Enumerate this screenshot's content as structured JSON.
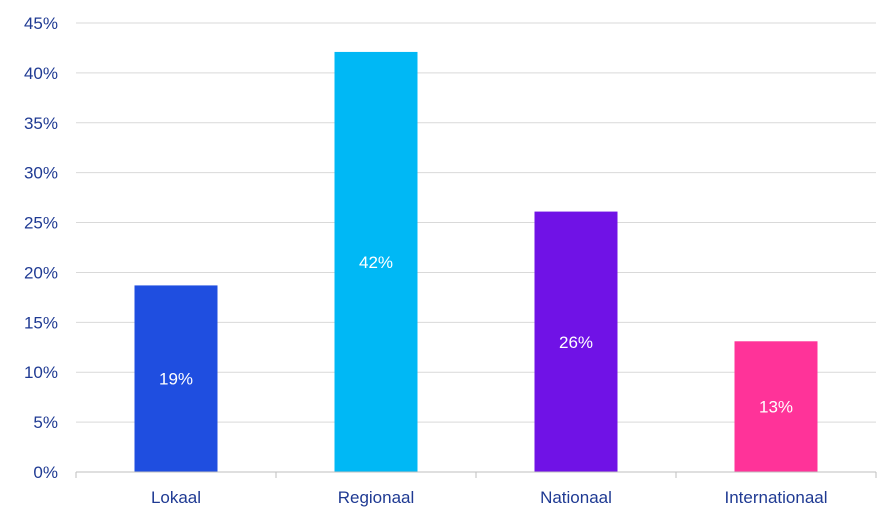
{
  "chart_data": {
    "type": "bar",
    "categories": [
      "Lokaal",
      "Regionaal",
      "Nationaal",
      "Internationaal"
    ],
    "values": [
      18.7,
      42.1,
      26.1,
      13.1
    ],
    "data_labels": [
      "19%",
      "42%",
      "26%",
      "13%"
    ],
    "colors": [
      "#1f4ee0",
      "#00b8f5",
      "#7012e6",
      "#ff3399"
    ],
    "ylim": [
      0,
      45
    ],
    "yticks": [
      0,
      5,
      10,
      15,
      20,
      25,
      30,
      35,
      40,
      45
    ],
    "ytick_labels": [
      "0%",
      "5%",
      "10%",
      "15%",
      "20%",
      "25%",
      "30%",
      "35%",
      "40%",
      "45%"
    ],
    "grid": true,
    "legend": "none",
    "title": "",
    "xlabel": "",
    "ylabel": ""
  }
}
